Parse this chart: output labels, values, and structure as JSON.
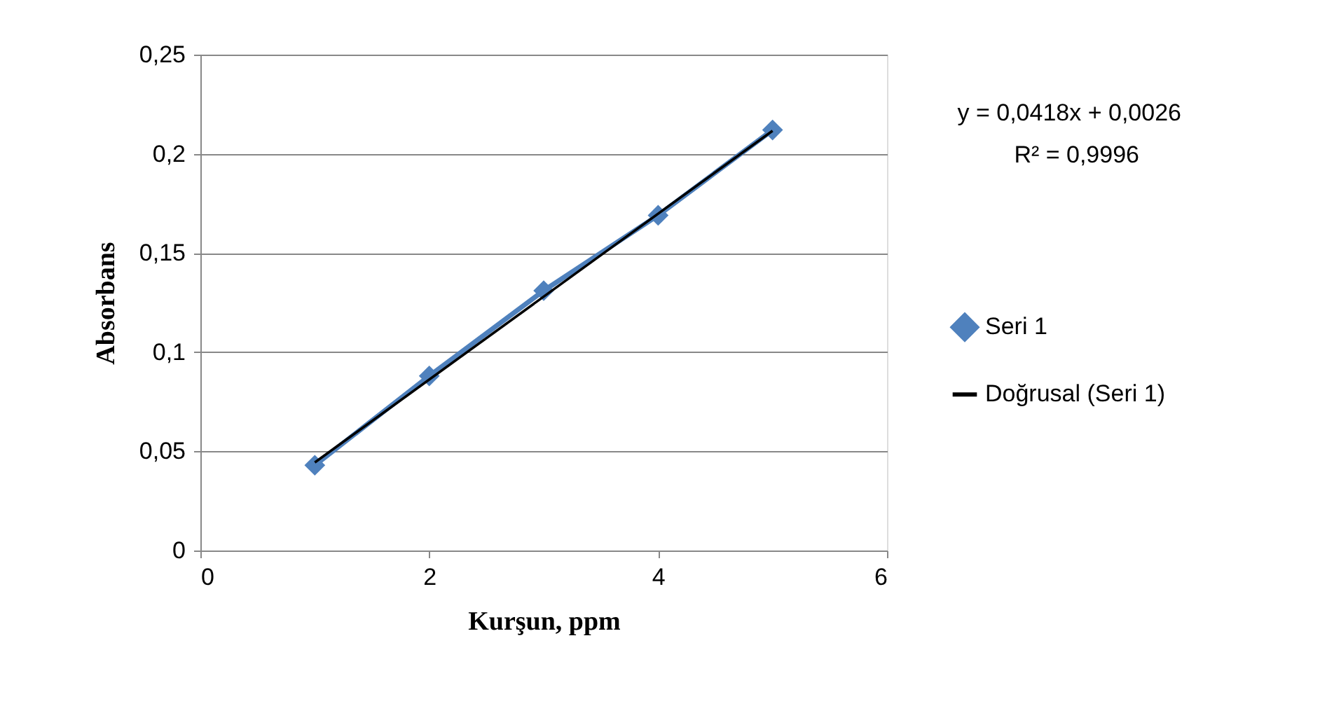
{
  "chart_data": {
    "type": "line",
    "xlabel": "Kurşun, ppm",
    "ylabel": "Absorbans",
    "x": [
      1,
      2,
      3,
      4,
      5
    ],
    "series": [
      {
        "name": "Seri 1",
        "color": "#4f81bd",
        "values": [
          0.043,
          0.088,
          0.131,
          0.169,
          0.212
        ],
        "marker": "diamond"
      },
      {
        "name": "Doğrusal (Seri 1)",
        "color": "#000000",
        "x": [
          1,
          5
        ],
        "values": [
          0.0444,
          0.2116
        ],
        "marker": "none"
      }
    ],
    "xlim": [
      0,
      6
    ],
    "xticks": [
      0,
      2,
      4,
      6
    ],
    "ylim": [
      0,
      0.25
    ],
    "yticks": [
      0,
      {
        "value": 0.05,
        "label": "0,05"
      },
      {
        "value": 0.1,
        "label": "0,1"
      },
      {
        "value": 0.15,
        "label": "0,15"
      },
      {
        "value": 0.2,
        "label": "0,2"
      },
      {
        "value": 0.25,
        "label": "0,25"
      }
    ],
    "annotations": [
      "y = 0,0418x + 0,0026",
      "R² = 0,9996"
    ],
    "grid": "y",
    "legend": "right"
  }
}
